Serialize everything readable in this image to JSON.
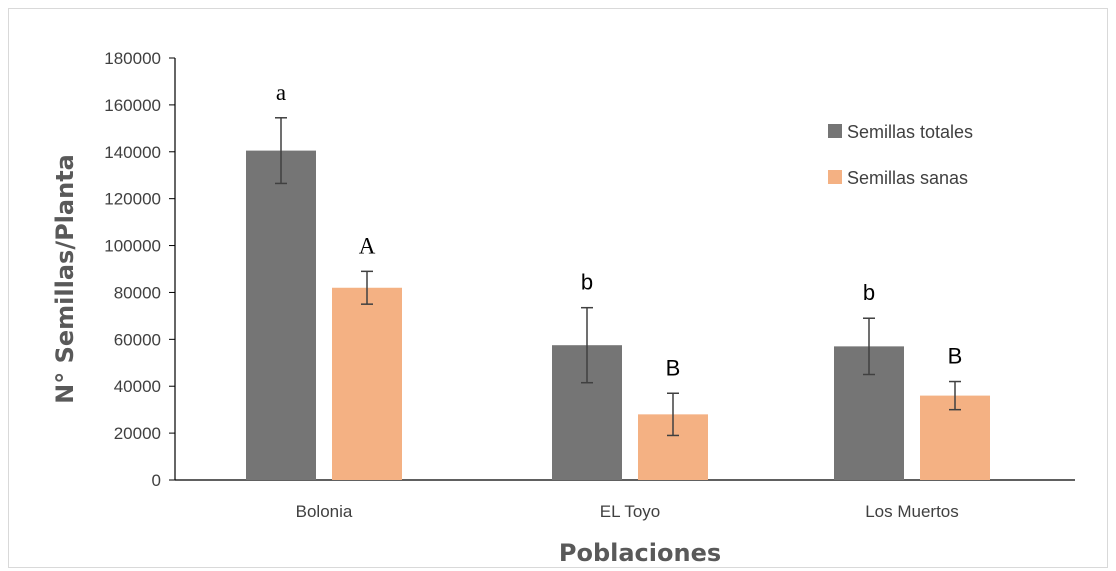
{
  "chart_data": {
    "type": "bar",
    "title": "",
    "xlabel": "Poblaciones",
    "ylabel": "N° Semillas/Planta",
    "ylim": [
      0,
      180000
    ],
    "yticks": [
      0,
      20000,
      40000,
      60000,
      80000,
      100000,
      120000,
      140000,
      160000,
      180000
    ],
    "categories": [
      "Bolonia",
      "EL Toyo",
      "Los Muertos"
    ],
    "series": [
      {
        "name": "Semillas totales",
        "color": "#757575",
        "values": [
          140500,
          57500,
          57000
        ],
        "errors": [
          14000,
          16000,
          12000
        ],
        "labels": [
          "a",
          "b",
          "b"
        ]
      },
      {
        "name": "Semillas sanas",
        "color": "#f4b183",
        "values": [
          82000,
          28000,
          36000
        ],
        "errors": [
          7000,
          9000,
          6000
        ],
        "labels": [
          "A",
          "B",
          "B"
        ]
      }
    ],
    "legend_position": "top-right",
    "grid": false
  }
}
